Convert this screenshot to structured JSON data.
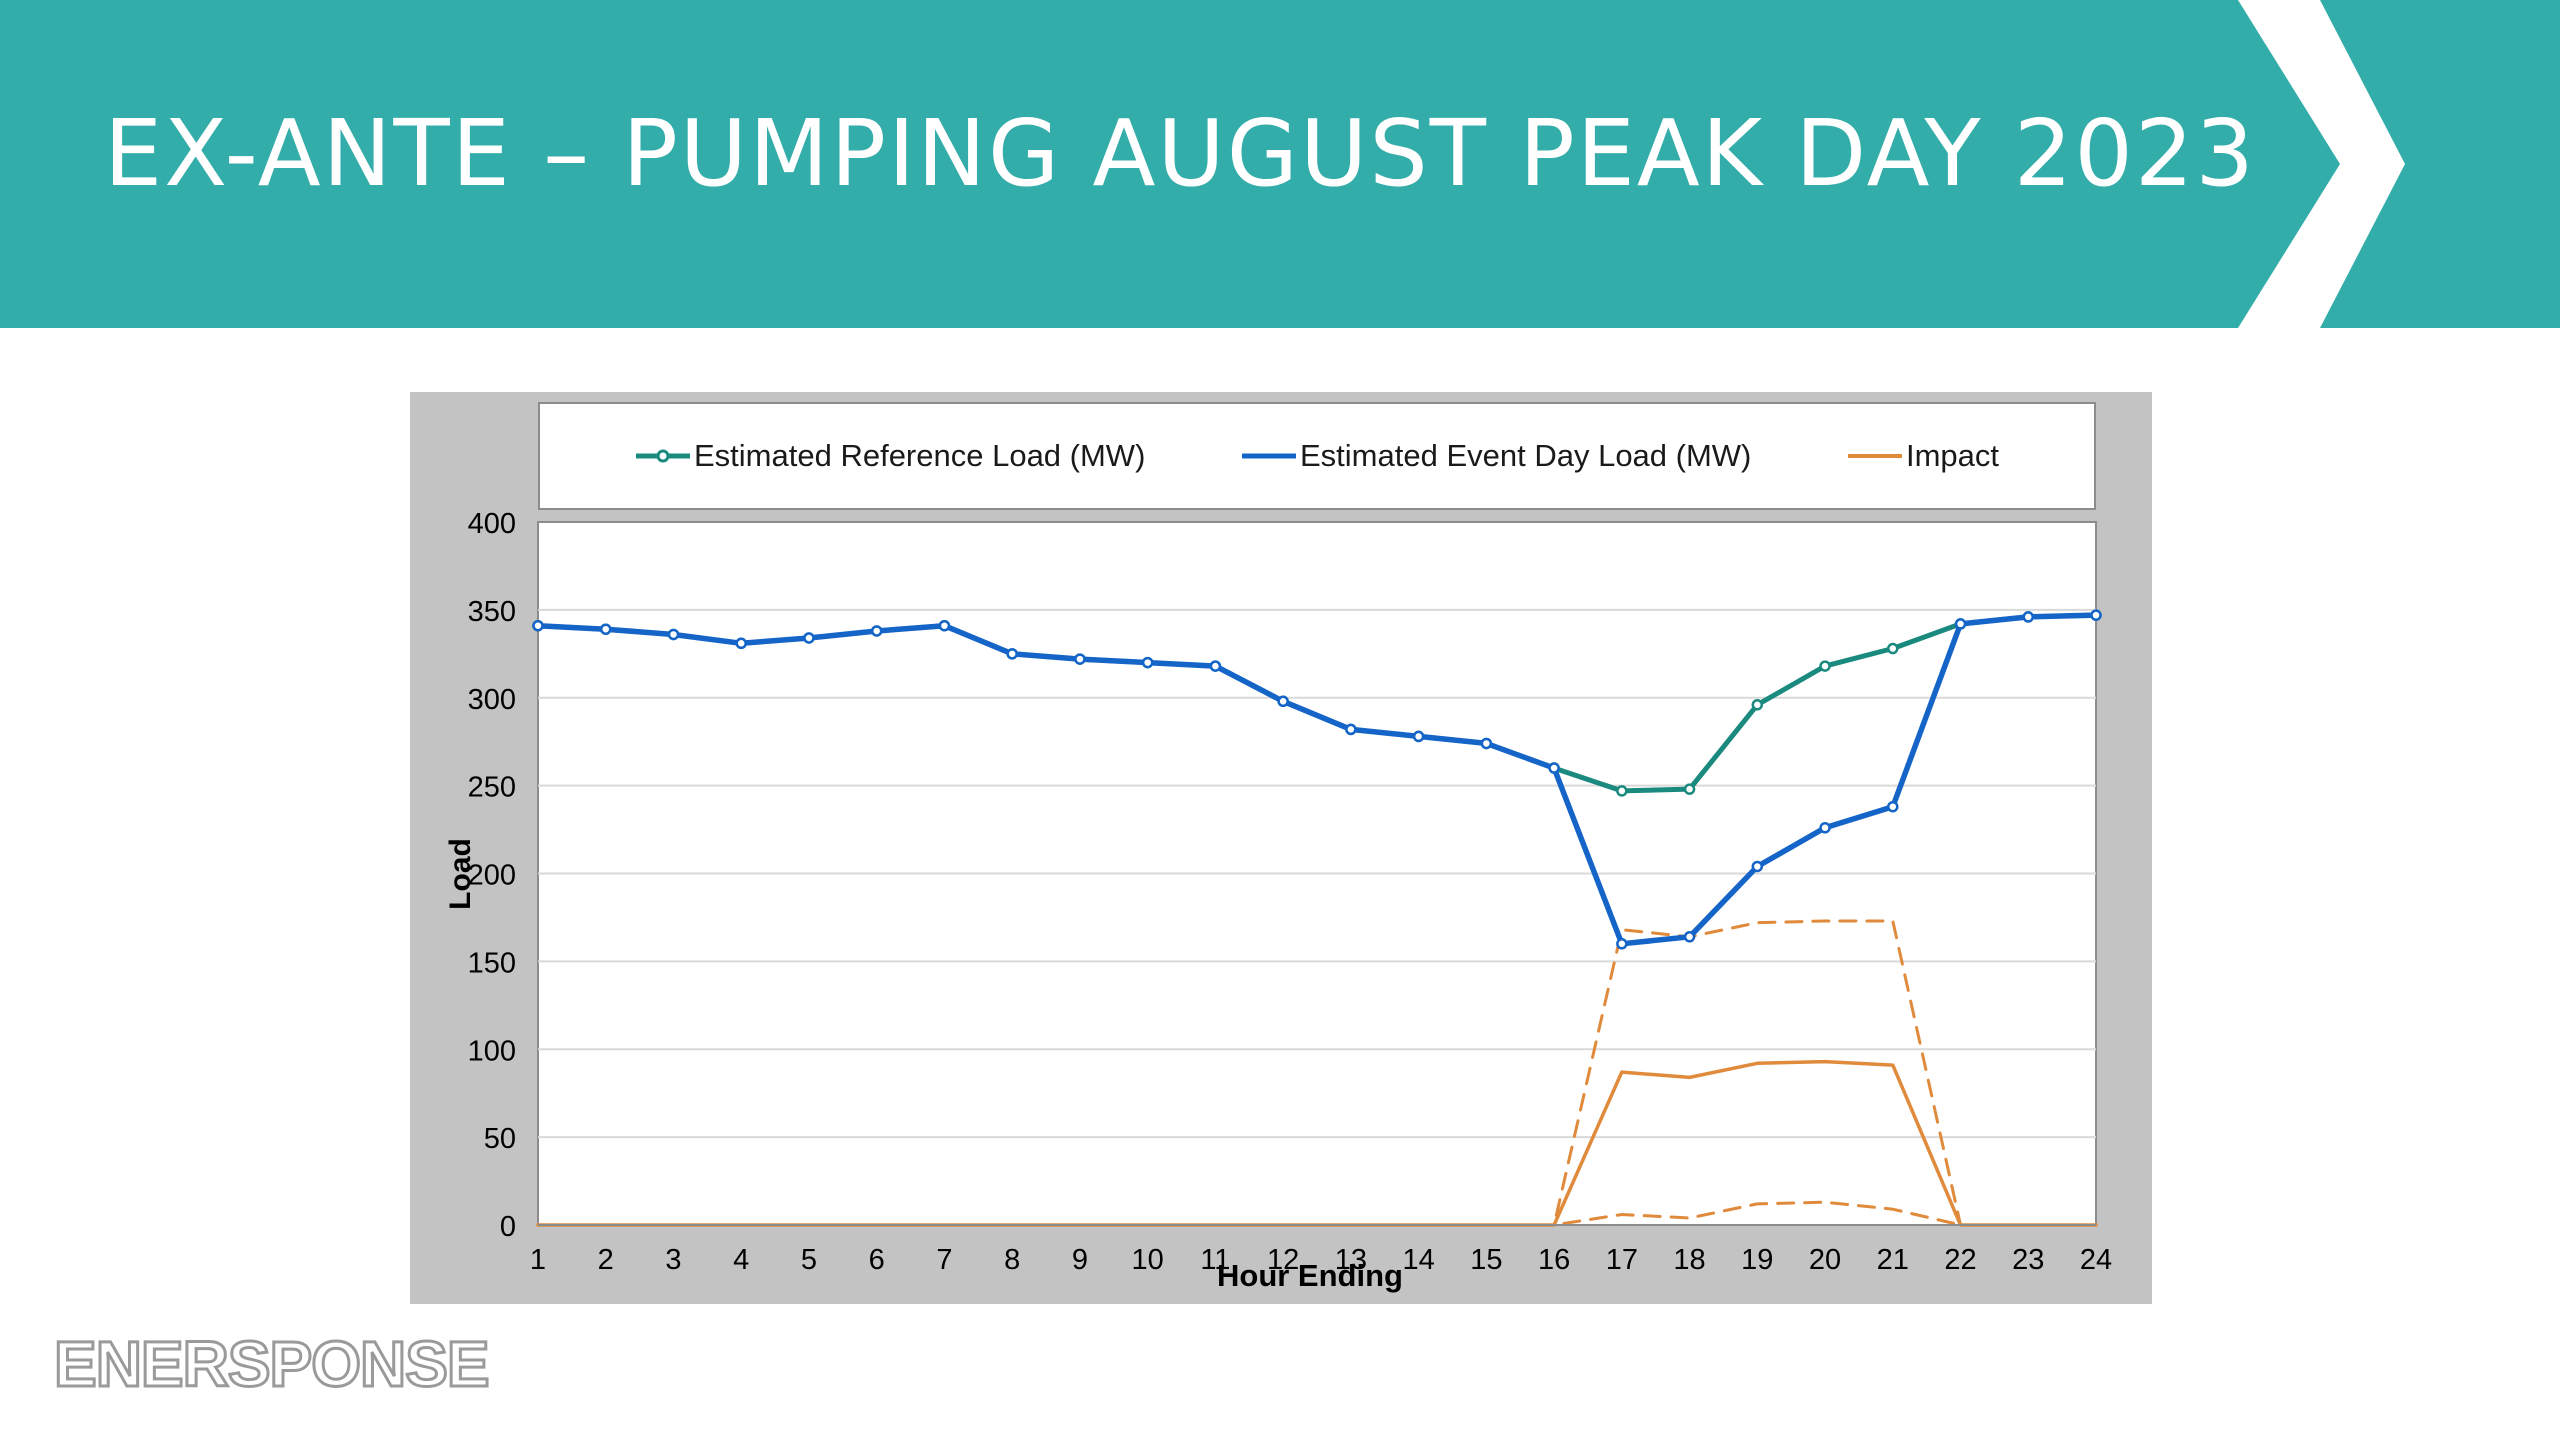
{
  "slide": {
    "title": "EX-ANTE – PUMPING AUGUST PEAK DAY 2023",
    "banner_color": "#33ada9",
    "logo_text": "ENERSPONSE"
  },
  "chart_data": {
    "type": "line",
    "title": "",
    "xlabel": "Hour Ending",
    "ylabel": "Load",
    "x": [
      1,
      2,
      3,
      4,
      5,
      6,
      7,
      8,
      9,
      10,
      11,
      12,
      13,
      14,
      15,
      16,
      17,
      18,
      19,
      20,
      21,
      22,
      23,
      24
    ],
    "ylim": [
      0,
      400
    ],
    "yticks": [
      0,
      50,
      100,
      150,
      200,
      250,
      300,
      350,
      400
    ],
    "grid": true,
    "legend_position": "top",
    "legend": [
      {
        "label": "Estimated Reference Load (MW)",
        "color": "#1a8a7e",
        "style": "line-marker"
      },
      {
        "label": "Estimated Event Day Load (MW)",
        "color": "#1565c8",
        "style": "line"
      },
      {
        "label": "Impact",
        "color": "#e08a3c",
        "style": "line"
      }
    ],
    "series": [
      {
        "name": "Estimated Reference Load (MW)",
        "color": "#1a8a7e",
        "values": [
          341,
          339,
          336,
          331,
          334,
          338,
          341,
          325,
          322,
          320,
          318,
          298,
          282,
          278,
          274,
          260,
          247,
          248,
          296,
          318,
          328,
          342,
          346,
          347
        ]
      },
      {
        "name": "Estimated Event Day Load (MW)",
        "color": "#1565c8",
        "values": [
          341,
          339,
          336,
          331,
          334,
          338,
          341,
          325,
          322,
          320,
          318,
          298,
          282,
          278,
          274,
          260,
          160,
          164,
          204,
          226,
          238,
          342,
          346,
          347
        ]
      },
      {
        "name": "Impact",
        "color": "#e08a3c",
        "values": [
          0,
          0,
          0,
          0,
          0,
          0,
          0,
          0,
          0,
          0,
          0,
          0,
          0,
          0,
          0,
          0,
          87,
          84,
          92,
          93,
          91,
          0,
          0,
          0
        ]
      },
      {
        "name": "",
        "color": "#e08a3c",
        "dashed": true,
        "values": [
          0,
          0,
          0,
          0,
          0,
          0,
          0,
          0,
          0,
          0,
          0,
          0,
          0,
          0,
          0,
          0,
          168,
          164,
          172,
          173,
          173,
          0,
          0,
          0
        ]
      },
      {
        "name": "",
        "color": "#e08a3c",
        "dashed": true,
        "values": [
          0,
          0,
          0,
          0,
          0,
          0,
          0,
          0,
          0,
          0,
          0,
          0,
          0,
          0,
          0,
          0,
          6,
          4,
          12,
          13,
          9,
          0,
          0,
          0
        ]
      }
    ]
  }
}
